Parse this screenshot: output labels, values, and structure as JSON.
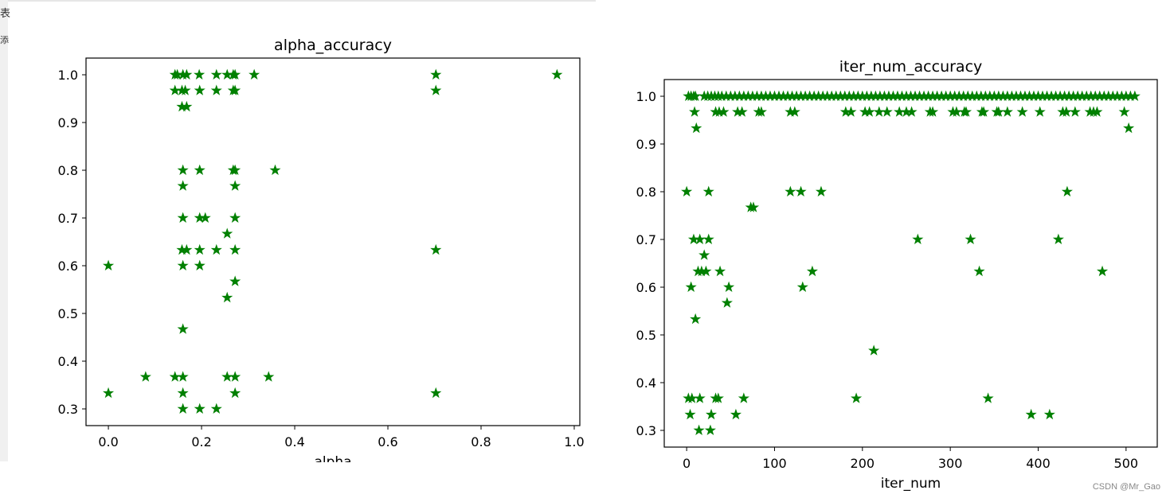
{
  "side_text": [
    "表",
    "添"
  ],
  "watermark": "CSDN @Mr_Gao",
  "colors": {
    "marker": "#008000"
  },
  "chart_data": [
    {
      "type": "scatter",
      "title": "alpha_accuracy",
      "xlabel": "alpha",
      "ylabel": "",
      "xlim": [
        -0.048,
        1.012
      ],
      "ylim": [
        0.265,
        1.035
      ],
      "xticks": [
        0.0,
        0.2,
        0.4,
        0.6,
        0.8,
        1.0
      ],
      "xtick_labels": [
        "0.0",
        "0.2",
        "0.4",
        "0.6",
        "0.8",
        "1.0"
      ],
      "yticks": [
        0.3,
        0.4,
        0.5,
        0.6,
        0.7,
        0.8,
        0.9,
        1.0
      ],
      "ytick_labels": [
        "0.3",
        "0.4",
        "0.5",
        "0.6",
        "0.7",
        "0.8",
        "0.9",
        "1.0"
      ],
      "marker": "star",
      "x": [
        0.143,
        0.148,
        0.16,
        0.168,
        0.195,
        0.232,
        0.255,
        0.268,
        0.272,
        0.313,
        0.703,
        0.963,
        0.143,
        0.158,
        0.165,
        0.196,
        0.232,
        0.268,
        0.272,
        0.703,
        0.158,
        0.168,
        0.16,
        0.196,
        0.268,
        0.272,
        0.358,
        0.16,
        0.272,
        0.16,
        0.196,
        0.208,
        0.272,
        0.255,
        0.158,
        0.168,
        0.196,
        0.232,
        0.272,
        0.703,
        0.0,
        0.16,
        0.196,
        0.272,
        0.255,
        0.16,
        0.08,
        0.143,
        0.16,
        0.255,
        0.272,
        0.344,
        0.0,
        0.16,
        0.272,
        0.703,
        0.16,
        0.196,
        0.232
      ],
      "y": [
        1.0,
        1.0,
        1.0,
        1.0,
        1.0,
        1.0,
        1.0,
        1.0,
        1.0,
        1.0,
        1.0,
        1.0,
        0.967,
        0.967,
        0.967,
        0.967,
        0.967,
        0.967,
        0.967,
        0.967,
        0.933,
        0.933,
        0.8,
        0.8,
        0.8,
        0.8,
        0.8,
        0.767,
        0.767,
        0.7,
        0.7,
        0.7,
        0.7,
        0.667,
        0.633,
        0.633,
        0.633,
        0.633,
        0.633,
        0.633,
        0.6,
        0.6,
        0.6,
        0.567,
        0.533,
        0.467,
        0.367,
        0.367,
        0.367,
        0.367,
        0.367,
        0.367,
        0.333,
        0.333,
        0.333,
        0.333,
        0.3,
        0.3,
        0.3
      ]
    },
    {
      "type": "scatter",
      "title": "iter_num_accuracy",
      "xlabel": "iter_num",
      "ylabel": "",
      "xlim": [
        -25.5,
        535.5
      ],
      "ylim": [
        0.265,
        1.035
      ],
      "xticks": [
        0,
        100,
        200,
        300,
        400,
        500
      ],
      "xtick_labels": [
        "0",
        "100",
        "200",
        "300",
        "400",
        "500"
      ],
      "yticks": [
        0.3,
        0.4,
        0.5,
        0.6,
        0.7,
        0.8,
        0.9,
        1.0
      ],
      "ytick_labels": [
        "0.3",
        "0.4",
        "0.5",
        "0.6",
        "0.7",
        "0.8",
        "0.9",
        "1.0"
      ],
      "marker": "star",
      "x": [
        2,
        5,
        8,
        10,
        20,
        24,
        28,
        32,
        36,
        40,
        45,
        50,
        55,
        60,
        65,
        70,
        75,
        80,
        85,
        90,
        95,
        100,
        105,
        110,
        115,
        120,
        125,
        130,
        135,
        140,
        145,
        150,
        155,
        160,
        165,
        170,
        175,
        180,
        185,
        190,
        195,
        200,
        205,
        210,
        215,
        220,
        225,
        230,
        235,
        240,
        245,
        250,
        255,
        260,
        265,
        270,
        275,
        280,
        285,
        290,
        295,
        300,
        305,
        310,
        315,
        320,
        325,
        330,
        335,
        340,
        345,
        350,
        355,
        360,
        365,
        370,
        375,
        380,
        385,
        390,
        395,
        400,
        405,
        410,
        415,
        420,
        425,
        430,
        435,
        440,
        445,
        450,
        455,
        460,
        465,
        470,
        475,
        480,
        485,
        490,
        495,
        500,
        505,
        510,
        9,
        33,
        37,
        42,
        58,
        63,
        82,
        85,
        118,
        123,
        181,
        187,
        203,
        208,
        219,
        228,
        242,
        250,
        256,
        277,
        280,
        303,
        307,
        316,
        318,
        336,
        338,
        353,
        355,
        365,
        382,
        402,
        428,
        432,
        442,
        459,
        463,
        467,
        498,
        11,
        503,
        0,
        25,
        118,
        130,
        153,
        433,
        73,
        76,
        8,
        15,
        25,
        263,
        323,
        423,
        20,
        13,
        17,
        22,
        38,
        143,
        333,
        473,
        5,
        48,
        132,
        46,
        10,
        213,
        2,
        6,
        15,
        33,
        36,
        65,
        193,
        343,
        4,
        28,
        56,
        392,
        413,
        14,
        27
      ],
      "y": [
        1.0,
        1.0,
        1.0,
        1.0,
        1.0,
        1.0,
        1.0,
        1.0,
        1.0,
        1.0,
        1.0,
        1.0,
        1.0,
        1.0,
        1.0,
        1.0,
        1.0,
        1.0,
        1.0,
        1.0,
        1.0,
        1.0,
        1.0,
        1.0,
        1.0,
        1.0,
        1.0,
        1.0,
        1.0,
        1.0,
        1.0,
        1.0,
        1.0,
        1.0,
        1.0,
        1.0,
        1.0,
        1.0,
        1.0,
        1.0,
        1.0,
        1.0,
        1.0,
        1.0,
        1.0,
        1.0,
        1.0,
        1.0,
        1.0,
        1.0,
        1.0,
        1.0,
        1.0,
        1.0,
        1.0,
        1.0,
        1.0,
        1.0,
        1.0,
        1.0,
        1.0,
        1.0,
        1.0,
        1.0,
        1.0,
        1.0,
        1.0,
        1.0,
        1.0,
        1.0,
        1.0,
        1.0,
        1.0,
        1.0,
        1.0,
        1.0,
        1.0,
        1.0,
        1.0,
        1.0,
        1.0,
        1.0,
        1.0,
        1.0,
        1.0,
        1.0,
        1.0,
        1.0,
        1.0,
        1.0,
        1.0,
        1.0,
        1.0,
        1.0,
        1.0,
        1.0,
        1.0,
        1.0,
        1.0,
        1.0,
        1.0,
        1.0,
        1.0,
        1.0,
        0.967,
        0.967,
        0.967,
        0.967,
        0.967,
        0.967,
        0.967,
        0.967,
        0.967,
        0.967,
        0.967,
        0.967,
        0.967,
        0.967,
        0.967,
        0.967,
        0.967,
        0.967,
        0.967,
        0.967,
        0.967,
        0.967,
        0.967,
        0.967,
        0.967,
        0.967,
        0.967,
        0.967,
        0.967,
        0.967,
        0.967,
        0.967,
        0.967,
        0.967,
        0.967,
        0.967,
        0.967,
        0.967,
        0.967,
        0.933,
        0.933,
        0.8,
        0.8,
        0.8,
        0.8,
        0.8,
        0.8,
        0.767,
        0.767,
        0.7,
        0.7,
        0.7,
        0.7,
        0.7,
        0.7,
        0.667,
        0.633,
        0.633,
        0.633,
        0.633,
        0.633,
        0.633,
        0.633,
        0.6,
        0.6,
        0.6,
        0.567,
        0.533,
        0.467,
        0.367,
        0.367,
        0.367,
        0.367,
        0.367,
        0.367,
        0.367,
        0.367,
        0.333,
        0.333,
        0.333,
        0.333,
        0.333,
        0.3,
        0.3
      ]
    }
  ]
}
